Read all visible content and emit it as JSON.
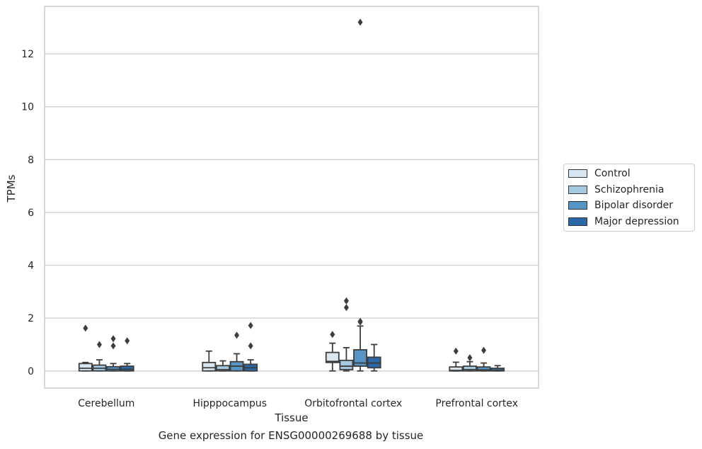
{
  "chart_data": {
    "type": "box",
    "xlabel": "Tissue",
    "ylabel": "TPMs",
    "caption": "Gene expression for ENSG00000269688 by tissue",
    "categories": [
      "Cerebellum",
      "Hipppocampus",
      "Orbitofrontal cortex",
      "Prefrontal cortex"
    ],
    "ylim": [
      -0.65,
      13.8
    ],
    "yticks": [
      0,
      2,
      4,
      6,
      8,
      10,
      12
    ],
    "grid": true,
    "legend_position": "outside-right",
    "series": [
      {
        "name": "Control",
        "color": "#d8e6f2",
        "boxes": [
          {
            "whislo": 0.0,
            "q1": 0.0,
            "med": 0.1,
            "q3": 0.28,
            "whishi": 0.32,
            "fliers": [
              1.62
            ]
          },
          {
            "whislo": 0.0,
            "q1": 0.0,
            "med": 0.12,
            "q3": 0.32,
            "whishi": 0.75,
            "fliers": []
          },
          {
            "whislo": 0.0,
            "q1": 0.32,
            "med": 0.36,
            "q3": 0.7,
            "whishi": 1.05,
            "fliers": [
              1.38
            ]
          },
          {
            "whislo": 0.0,
            "q1": 0.0,
            "med": 0.02,
            "q3": 0.15,
            "whishi": 0.33,
            "fliers": [
              0.75
            ]
          }
        ]
      },
      {
        "name": "Schizophrenia",
        "color": "#a4c9e2",
        "boxes": [
          {
            "whislo": 0.0,
            "q1": 0.0,
            "med": 0.1,
            "q3": 0.22,
            "whishi": 0.42,
            "fliers": [
              1.0
            ]
          },
          {
            "whislo": 0.0,
            "q1": 0.0,
            "med": 0.05,
            "q3": 0.2,
            "whishi": 0.38,
            "fliers": []
          },
          {
            "whislo": 0.0,
            "q1": 0.05,
            "med": 0.18,
            "q3": 0.4,
            "whishi": 0.88,
            "fliers": [
              2.4,
              2.65
            ]
          },
          {
            "whislo": 0.0,
            "q1": 0.0,
            "med": 0.05,
            "q3": 0.18,
            "whishi": 0.35,
            "fliers": [
              0.5
            ]
          }
        ]
      },
      {
        "name": "Bipolar disorder",
        "color": "#5696c7",
        "boxes": [
          {
            "whislo": 0.0,
            "q1": 0.0,
            "med": 0.06,
            "q3": 0.16,
            "whishi": 0.28,
            "fliers": [
              0.95,
              1.22
            ]
          },
          {
            "whislo": 0.0,
            "q1": 0.0,
            "med": 0.18,
            "q3": 0.35,
            "whishi": 0.65,
            "fliers": [
              1.35
            ]
          },
          {
            "whislo": 0.0,
            "q1": 0.18,
            "med": 0.3,
            "q3": 0.8,
            "whishi": 1.7,
            "fliers": [
              1.85,
              1.88,
              13.2
            ]
          },
          {
            "whislo": 0.0,
            "q1": 0.0,
            "med": 0.04,
            "q3": 0.15,
            "whishi": 0.3,
            "fliers": [
              0.78
            ]
          }
        ]
      },
      {
        "name": "Major depression",
        "color": "#2b68a8",
        "boxes": [
          {
            "whislo": 0.0,
            "q1": 0.0,
            "med": 0.06,
            "q3": 0.18,
            "whishi": 0.28,
            "fliers": [
              1.14
            ]
          },
          {
            "whislo": 0.0,
            "q1": 0.0,
            "med": 0.12,
            "q3": 0.25,
            "whishi": 0.42,
            "fliers": [
              0.95,
              1.72
            ]
          },
          {
            "whislo": 0.0,
            "q1": 0.12,
            "med": 0.3,
            "q3": 0.52,
            "whishi": 1.0,
            "fliers": []
          },
          {
            "whislo": 0.0,
            "q1": 0.0,
            "med": 0.02,
            "q3": 0.1,
            "whishi": 0.2,
            "fliers": []
          }
        ]
      }
    ]
  }
}
